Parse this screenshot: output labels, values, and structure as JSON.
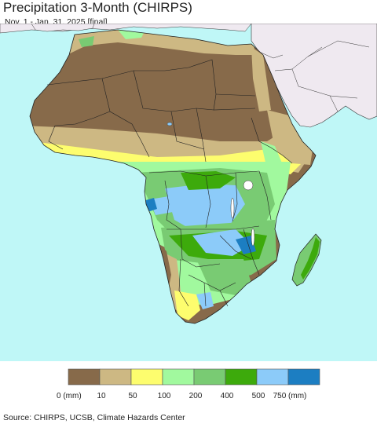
{
  "header": {
    "title": "Precipitation 3-Month (CHIRPS)",
    "subtitle": "Nov. 1 - Jan. 31, 2025 [final]"
  },
  "map": {
    "ocean_color": "#bff7f7",
    "outside_land_color": "#efe9f0"
  },
  "legend": {
    "colors": [
      "#876a4a",
      "#cdb883",
      "#fdfd6e",
      "#a1f99e",
      "#79cb73",
      "#3daa0c",
      "#8ccbf9",
      "#1c7ec2"
    ],
    "labels": [
      "0 (mm)",
      "10",
      "50",
      "100",
      "200",
      "400",
      "500",
      "750 (mm)"
    ]
  },
  "footer": {
    "source": "Source: CHIRPS, UCSB, Climate Hazards Center"
  }
}
